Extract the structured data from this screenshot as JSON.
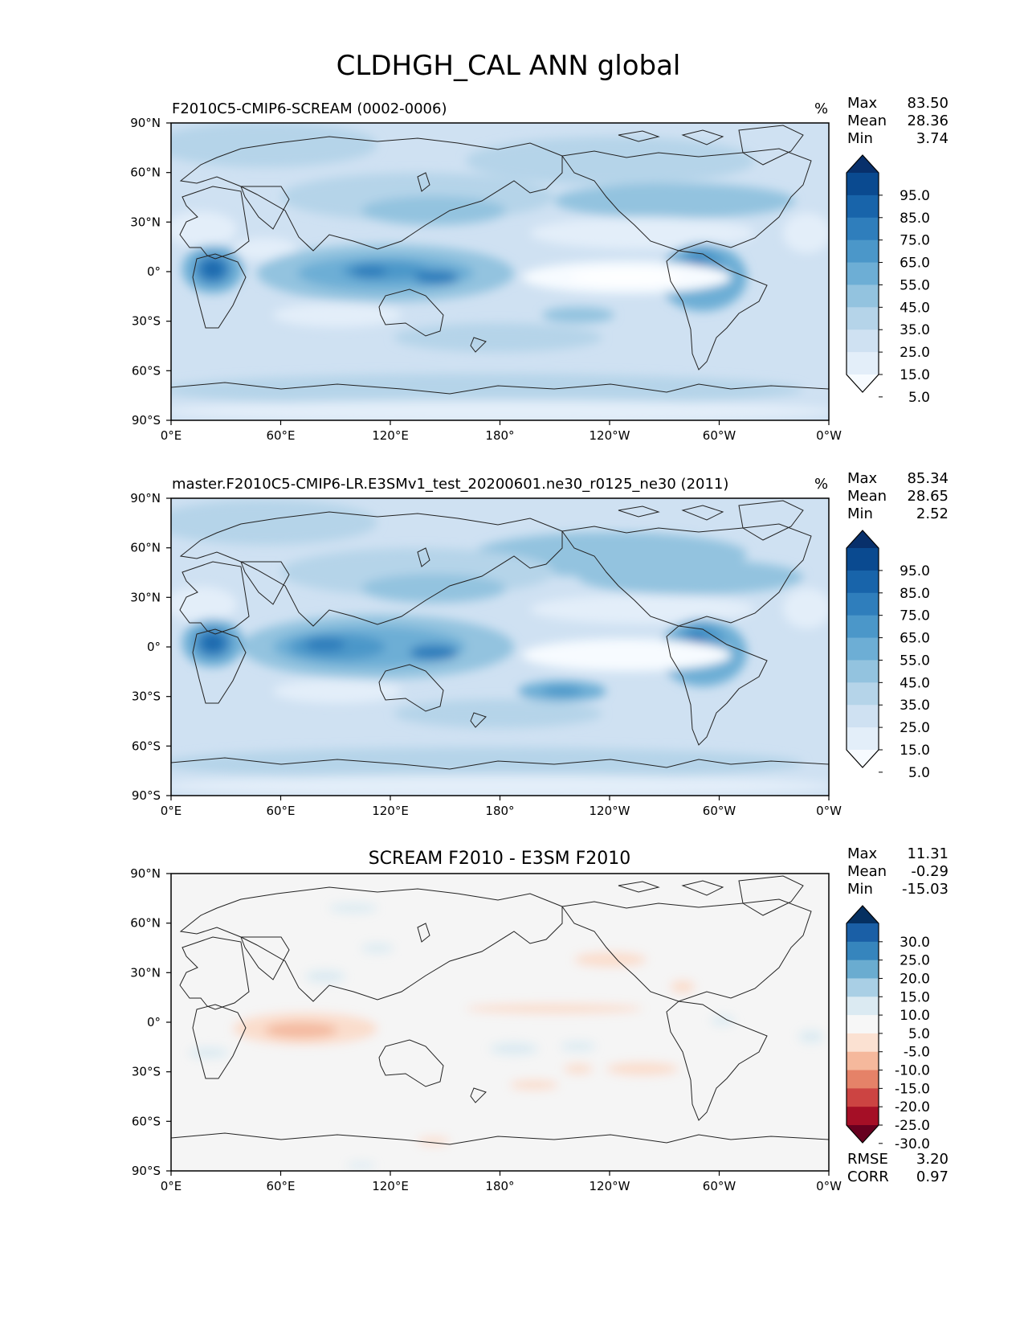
{
  "figure": {
    "title": "CLDHGH_CAL ANN global"
  },
  "axes": {
    "lon_labels": [
      "0°E",
      "60°E",
      "120°E",
      "180°",
      "120°W",
      "60°W",
      "0°W"
    ],
    "lat_labels": [
      "90°N",
      "60°N",
      "30°N",
      "0°",
      "30°S",
      "60°S",
      "90°S"
    ]
  },
  "panels": [
    {
      "id": "test",
      "title": "F2010C5-CMIP6-SCREAM (0002-0006)",
      "units": "%",
      "stats": [
        {
          "label": "Max",
          "value": "83.50"
        },
        {
          "label": "Mean",
          "value": "28.36"
        },
        {
          "label": "Min",
          "value": "3.74"
        }
      ],
      "colorbar": {
        "ticks": [
          "95.0",
          "85.0",
          "75.0",
          "65.0",
          "55.0",
          "45.0",
          "35.0",
          "25.0",
          "15.0",
          "5.0"
        ],
        "colors": [
          "#f7fbff",
          "#e3eef9",
          "#cfe1f2",
          "#b5d4e9",
          "#93c3df",
          "#6daed5",
          "#4b97c9",
          "#2f7ebc",
          "#1864aa",
          "#0a4a90",
          "#08306b"
        ]
      },
      "footer_stats": []
    },
    {
      "id": "ref",
      "title": "master.F2010C5-CMIP6-LR.E3SMv1_test_20200601.ne30_r0125_ne30 (2011)",
      "units": "%",
      "stats": [
        {
          "label": "Max",
          "value": "85.34"
        },
        {
          "label": "Mean",
          "value": "28.65"
        },
        {
          "label": "Min",
          "value": "2.52"
        }
      ],
      "colorbar": {
        "ticks": [
          "95.0",
          "85.0",
          "75.0",
          "65.0",
          "55.0",
          "45.0",
          "35.0",
          "25.0",
          "15.0",
          "5.0"
        ],
        "colors": [
          "#f7fbff",
          "#e3eef9",
          "#cfe1f2",
          "#b5d4e9",
          "#93c3df",
          "#6daed5",
          "#4b97c9",
          "#2f7ebc",
          "#1864aa",
          "#0a4a90",
          "#08306b"
        ]
      },
      "footer_stats": []
    },
    {
      "id": "diff",
      "title": "SCREAM F2010 - E3SM F2010",
      "units": "",
      "stats": [
        {
          "label": "Max",
          "value": "11.31"
        },
        {
          "label": "Mean",
          "value": "-0.29"
        },
        {
          "label": "Min",
          "value": "-15.03"
        }
      ],
      "colorbar": {
        "ticks": [
          "30.0",
          "25.0",
          "20.0",
          "15.0",
          "10.0",
          "5.0",
          "-5.0",
          "-10.0",
          "-15.0",
          "-20.0",
          "-25.0",
          "-30.0"
        ],
        "colors": [
          "#67001f",
          "#a50f26",
          "#cc4442",
          "#e58268",
          "#f5b89c",
          "#fbe1d2",
          "#f7f7f7",
          "#dbeaf2",
          "#a9cfe5",
          "#6aacd0",
          "#3685bd",
          "#1a5fa6",
          "#053061"
        ]
      },
      "footer_stats": [
        {
          "label": "RMSE",
          "value": "3.20"
        },
        {
          "label": "CORR",
          "value": "0.97"
        }
      ]
    }
  ]
}
